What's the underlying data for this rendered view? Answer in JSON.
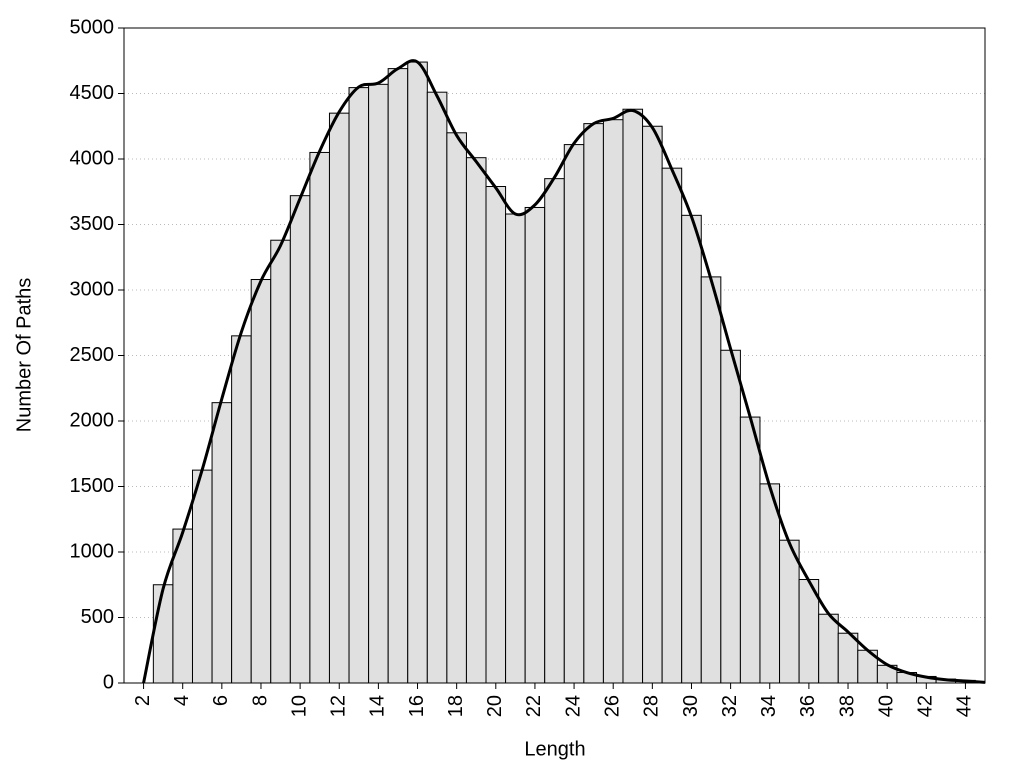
{
  "chart_data": {
    "type": "histogram",
    "xlabel": "Length",
    "ylabel": "Number Of Paths",
    "bins": [
      2.5,
      3.5,
      4.5,
      5.5,
      6.5,
      7.5,
      8.5,
      9.5,
      10.5,
      11.5,
      12.5,
      13.5,
      14.5,
      15.5,
      16.5,
      17.5,
      18.5,
      19.5,
      20.5,
      21.5,
      22.5,
      23.5,
      24.5,
      25.5,
      26.5,
      27.5,
      28.5,
      29.5,
      30.5,
      31.5,
      32.5,
      33.5,
      34.5,
      35.5,
      36.5,
      37.5,
      38.5,
      39.5,
      40.5,
      41.5,
      42.5,
      43.5,
      44.5
    ],
    "counts": [
      750,
      1175,
      1625,
      2140,
      2650,
      3080,
      3380,
      3720,
      4050,
      4350,
      4545,
      4570,
      4690,
      4740,
      4510,
      4200,
      4010,
      3790,
      3580,
      3630,
      3850,
      4110,
      4270,
      4300,
      4380,
      4250,
      3930,
      3570,
      3100,
      2540,
      2030,
      1520,
      1090,
      790,
      525,
      380,
      250,
      135,
      80,
      50,
      30,
      20
    ],
    "color": "#e0e0e0",
    "line": {
      "color": "#000000",
      "x": [
        2,
        3,
        4,
        5,
        6,
        7,
        8,
        9,
        10,
        11,
        12,
        13,
        14,
        15,
        16,
        17,
        18,
        19,
        20,
        21,
        22,
        23,
        24,
        25,
        26,
        27,
        28,
        29,
        30,
        31,
        32,
        33,
        34,
        35,
        36,
        37,
        38,
        39,
        40,
        41,
        42,
        43,
        44,
        45
      ],
      "values": [
        0,
        720,
        1150,
        1630,
        2170,
        2680,
        3070,
        3340,
        3700,
        4060,
        4360,
        4550,
        4580,
        4690,
        4740,
        4480,
        4180,
        3980,
        3780,
        3580,
        3650,
        3860,
        4120,
        4270,
        4310,
        4370,
        4240,
        3920,
        3560,
        3080,
        2550,
        2030,
        1500,
        1070,
        780,
        530,
        390,
        250,
        140,
        80,
        45,
        25,
        15,
        5
      ]
    },
    "xlim": [
      1,
      45
    ],
    "ylim": [
      0,
      5000
    ],
    "xticks": [
      2,
      4,
      6,
      8,
      10,
      12,
      14,
      16,
      18,
      20,
      22,
      24,
      26,
      28,
      30,
      32,
      34,
      36,
      38,
      40,
      42,
      44
    ],
    "yticks": [
      0,
      500,
      1000,
      1500,
      2000,
      2500,
      3000,
      3500,
      4000,
      4500,
      5000
    ],
    "grid": true
  }
}
